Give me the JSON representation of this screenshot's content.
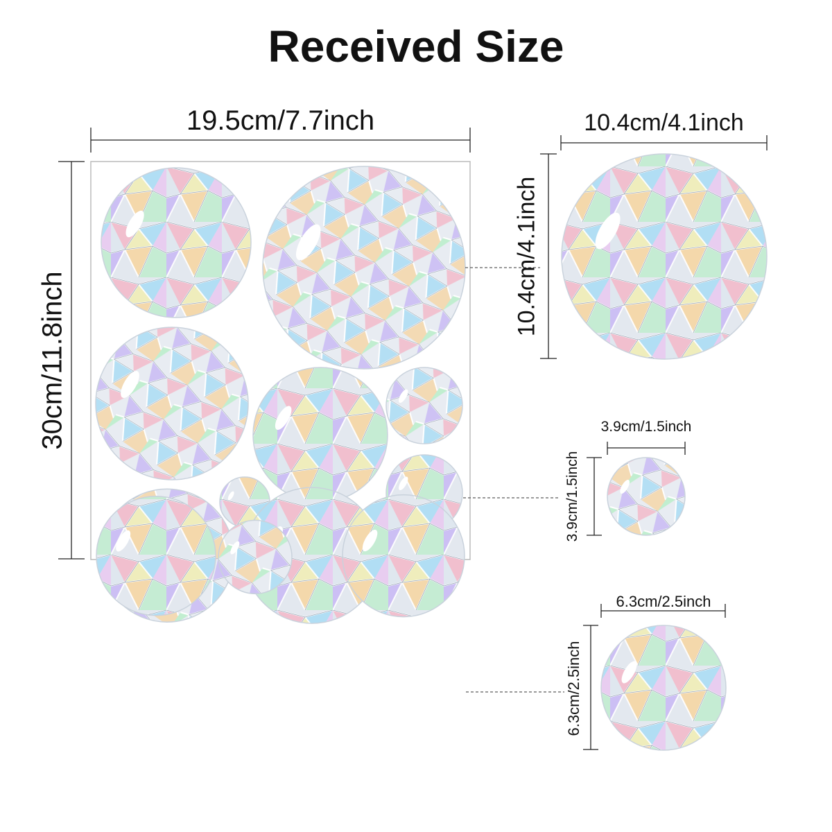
{
  "title": "Received Size",
  "sheet": {
    "width_label": "19.5cm/7.7inch",
    "height_label": "30cm/11.8inch"
  },
  "details": [
    {
      "name": "large-sticker",
      "width_label": "10.4cm/4.1inch",
      "height_label": "10.4cm/4.1inch"
    },
    {
      "name": "small-sticker",
      "width_label": "3.9cm/1.5inch",
      "height_label": "3.9cm/1.5inch"
    },
    {
      "name": "medium-sticker",
      "width_label": "6.3cm/2.5inch",
      "height_label": "6.3cm/2.5inch"
    }
  ],
  "colors": {
    "rainbow": [
      "#f4b8c8",
      "#f9d49a",
      "#f7f09a",
      "#b8efc8",
      "#a8dcf5",
      "#c8b8f5",
      "#e9c8f0",
      "#dde3ea"
    ],
    "outline": "#9aa8b8",
    "line": "#222222",
    "sheet_border": "#bbbbbb"
  }
}
